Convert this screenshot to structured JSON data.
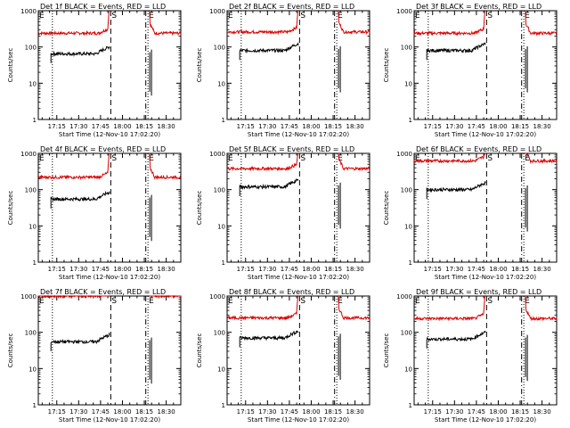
{
  "colors": {
    "events": "#000000",
    "lld": "#dd0000",
    "background": "#ffffff"
  },
  "axes": {
    "ylabel": "Counts/sec",
    "xlabel": "Start Time (12-Nov-10 17:02:20)",
    "yticks": [
      "1",
      "10",
      "100",
      "1000"
    ],
    "xticks": [
      "17:15",
      "17:30",
      "17:45",
      "18:00",
      "18:15",
      "18:30"
    ]
  },
  "chart_data": [
    {
      "type": "line",
      "title": "Det 1f BLACK = Events, RED = LLD",
      "flags": [
        "E",
        "S",
        "E"
      ],
      "yscale": "log",
      "ylim": [
        1,
        1000
      ],
      "xlim": [
        "17:02:20",
        "18:40"
      ],
      "events_level": 65,
      "lld_level": 240
    },
    {
      "type": "line",
      "title": "Det 2f BLACK = Events, RED = LLD",
      "flags": [
        "E",
        "S",
        "E"
      ],
      "yscale": "log",
      "ylim": [
        1,
        1000
      ],
      "xlim": [
        "17:02:20",
        "18:40"
      ],
      "events_level": 80,
      "lld_level": 260
    },
    {
      "type": "line",
      "title": "Det 3f BLACK = Events, RED = LLD",
      "flags": [
        "E",
        "S",
        "E"
      ],
      "yscale": "log",
      "ylim": [
        1,
        1000
      ],
      "xlim": [
        "17:02:20",
        "18:40"
      ],
      "events_level": 80,
      "lld_level": 240
    },
    {
      "type": "line",
      "title": "Det 4f BLACK = Events, RED = LLD",
      "flags": [
        "E",
        "S",
        "E"
      ],
      "yscale": "log",
      "ylim": [
        1,
        1000
      ],
      "xlim": [
        "17:02:20",
        "18:40"
      ],
      "events_level": 55,
      "lld_level": 220
    },
    {
      "type": "line",
      "title": "Det 5f BLACK = Events, RED = LLD",
      "flags": [
        "E",
        "S",
        "E"
      ],
      "yscale": "log",
      "ylim": [
        1,
        1000
      ],
      "xlim": [
        "17:02:20",
        "18:40"
      ],
      "events_level": 120,
      "lld_level": 380
    },
    {
      "type": "line",
      "title": "Det 6f BLACK = Events, RED = LLD",
      "flags": [
        "E",
        "S",
        "E"
      ],
      "yscale": "log",
      "ylim": [
        1,
        1000
      ],
      "xlim": [
        "17:02:20",
        "18:40"
      ],
      "events_level": 100,
      "lld_level": 620
    },
    {
      "type": "line",
      "title": "Det 7f BLACK = Events, RED = LLD",
      "flags": [
        "E",
        "S",
        "E"
      ],
      "yscale": "log",
      "ylim": [
        1,
        1000
      ],
      "xlim": [
        "17:02:20",
        "18:40"
      ],
      "events_level": 55,
      "lld_level": 1000
    },
    {
      "type": "line",
      "title": "Det 8f BLACK = Events, RED = LLD",
      "flags": [
        "E",
        "S",
        "E"
      ],
      "yscale": "log",
      "ylim": [
        1,
        1000
      ],
      "xlim": [
        "17:02:20",
        "18:40"
      ],
      "events_level": 70,
      "lld_level": 250
    },
    {
      "type": "line",
      "title": "Det 9f BLACK = Events, RED = LLD",
      "flags": [
        "E",
        "S",
        "E"
      ],
      "yscale": "log",
      "ylim": [
        1,
        1000
      ],
      "xlim": [
        "17:02:20",
        "18:40"
      ],
      "events_level": 65,
      "lld_level": 240
    }
  ]
}
